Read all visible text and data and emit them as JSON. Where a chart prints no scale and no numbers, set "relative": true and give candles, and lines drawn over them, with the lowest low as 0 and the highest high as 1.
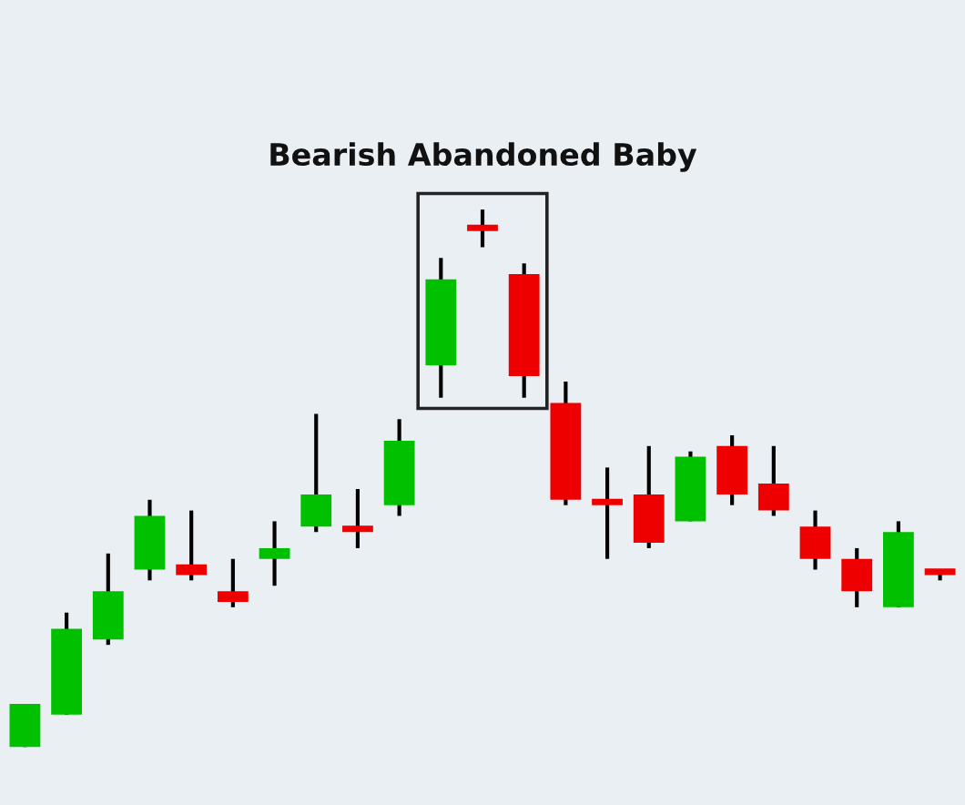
{
  "chart_data": {
    "type": "candlestick",
    "relative": true,
    "categories": [
      null,
      null,
      null,
      null,
      null,
      null,
      null,
      null,
      null,
      null,
      null,
      null,
      null,
      null,
      null,
      null,
      null,
      null,
      null,
      null,
      null,
      null,
      null
    ],
    "ohlc": [
      [
        0,
        0.08,
        0,
        0.08
      ],
      [
        0.06,
        0.25,
        0.06,
        0.22
      ],
      [
        0.2,
        0.36,
        0.19,
        0.29
      ],
      [
        0.33,
        0.46,
        0.31,
        0.43
      ],
      [
        0.34,
        0.44,
        0.31,
        0.32
      ],
      [
        0.29,
        0.35,
        0.26,
        0.27
      ],
      [
        0.35,
        0.42,
        0.3,
        0.37
      ],
      [
        0.41,
        0.62,
        0.4,
        0.47
      ],
      [
        0.41,
        0.48,
        0.37,
        0.4
      ],
      [
        0.45,
        0.61,
        0.43,
        0.57
      ],
      [
        0.71,
        0.91,
        0.65,
        0.87
      ],
      [
        0.97,
        1,
        0.93,
        0.96
      ],
      [
        0.88,
        0.9,
        0.65,
        0.69
      ],
      [
        0.64,
        0.68,
        0.45,
        0.46
      ],
      [
        0.46,
        0.52,
        0.35,
        0.45
      ],
      [
        0.47,
        0.56,
        0.37,
        0.38
      ],
      [
        0.42,
        0.55,
        0.42,
        0.54
      ],
      [
        0.56,
        0.58,
        0.45,
        0.47
      ],
      [
        0.49,
        0.56,
        0.43,
        0.44
      ],
      [
        0.41,
        0.44,
        0.33,
        0.35
      ],
      [
        0.35,
        0.37,
        0.26,
        0.29
      ],
      [
        0.26,
        0.42,
        0.26,
        0.4
      ],
      [
        0.33,
        0.33,
        0.31,
        0.32
      ]
    ],
    "colors": [
      "#00c000",
      "#00c000",
      "#00c000",
      "#00c000",
      "#ee0000",
      "#ee0000",
      "#00c000",
      "#00c000",
      "#ee0000",
      "#00c000",
      "#00c000",
      "#ee0000",
      "#ee0000",
      "#ee0000",
      "#ee0000",
      "#ee0000",
      "#00c000",
      "#ee0000",
      "#ee0000",
      "#ee0000",
      "#ee0000",
      "#00c000",
      "#ee0000"
    ],
    "annotations": [
      "Bearish Abandoned Baby"
    ]
  }
}
